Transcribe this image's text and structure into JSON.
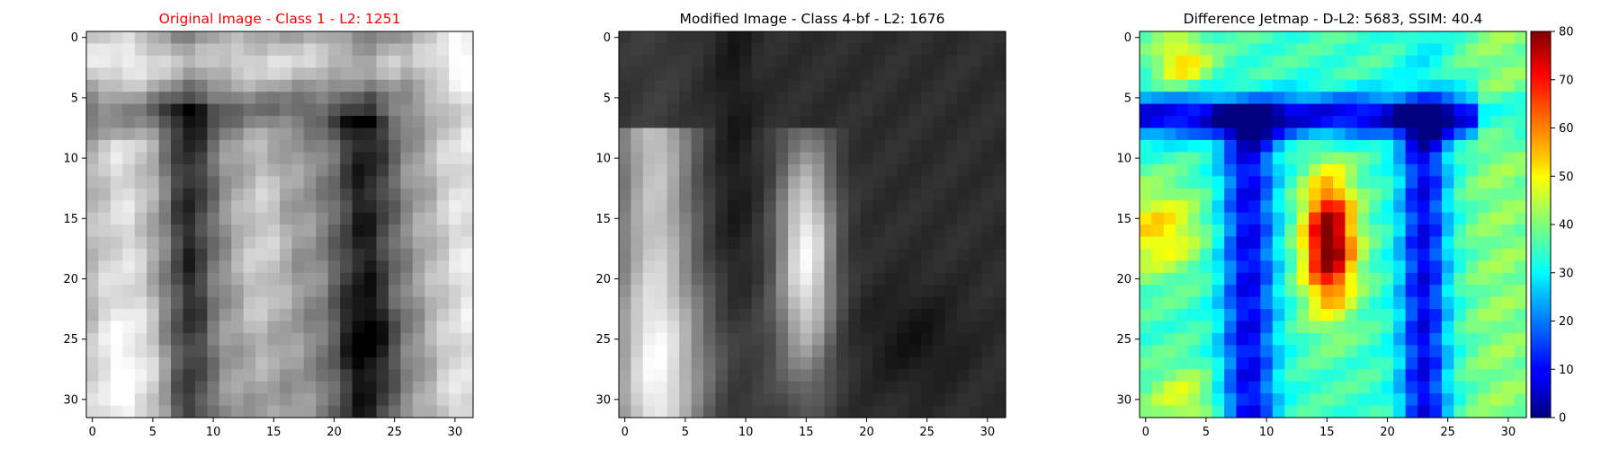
{
  "figure": {
    "panels": [
      {
        "title": "Original Image - Class 1 - L2: 1251",
        "title_color": "#ff0000"
      },
      {
        "title": "Modified Image - Class 4-bf - L2: 1676",
        "title_color": "#000000"
      },
      {
        "title": "Difference Jetmap - D-L2: 5683, SSIM: 40.4",
        "title_color": "#000000"
      }
    ]
  },
  "chart_data": [
    {
      "type": "heatmap",
      "title": "Original Image - Class 1 - L2: 1251",
      "colormap": "gray",
      "grid_size": [
        32,
        32
      ],
      "x_ticks": [
        0,
        5,
        10,
        15,
        20,
        25,
        30
      ],
      "y_ticks": [
        0,
        5,
        10,
        15,
        20,
        25,
        30
      ],
      "xlim": [
        -0.5,
        31.5
      ],
      "ylim": [
        31.5,
        -0.5
      ],
      "value_range": [
        0,
        255
      ],
      "description_values": "approximate grayscale intensities reconstructed from visible patterns"
    },
    {
      "type": "heatmap",
      "title": "Modified Image - Class 4-bf - L2: 1676",
      "colormap": "gray",
      "grid_size": [
        32,
        32
      ],
      "x_ticks": [
        0,
        5,
        10,
        15,
        20,
        25,
        30
      ],
      "y_ticks": [
        0,
        5,
        10,
        15,
        20,
        25,
        30
      ],
      "xlim": [
        -0.5,
        31.5
      ],
      "ylim": [
        31.5,
        -0.5
      ],
      "value_range": [
        0,
        255
      ]
    },
    {
      "type": "heatmap",
      "title": "Difference Jetmap - D-L2: 5683, SSIM: 40.4",
      "colormap": "jet",
      "grid_size": [
        32,
        32
      ],
      "x_ticks": [
        0,
        5,
        10,
        15,
        20,
        25,
        30
      ],
      "y_ticks": [
        0,
        5,
        10,
        15,
        20,
        25,
        30
      ],
      "xlim": [
        -0.5,
        31.5
      ],
      "ylim": [
        31.5,
        -0.5
      ],
      "colorbar": {
        "min": 0,
        "max": 80,
        "ticks": [
          0,
          10,
          20,
          30,
          40,
          50,
          60,
          70,
          80
        ]
      }
    }
  ]
}
